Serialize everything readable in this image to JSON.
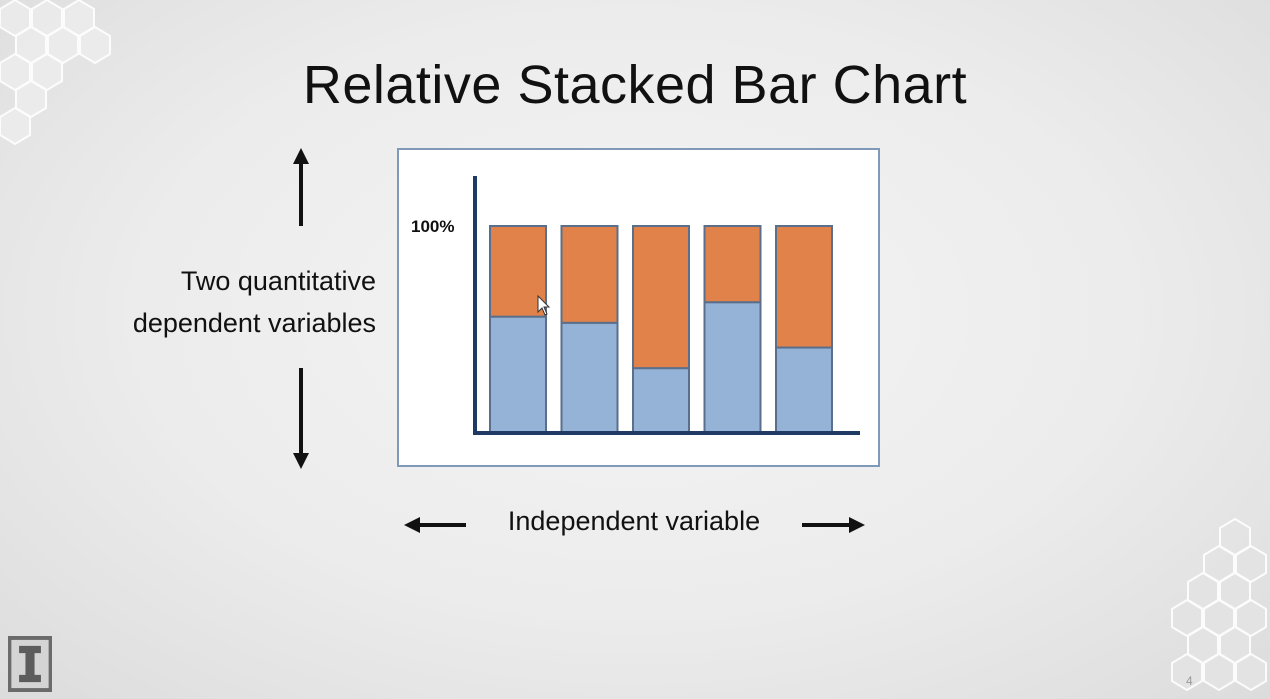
{
  "slide": {
    "title": "Relative Stacked Bar Chart",
    "y_axis_caption_lines": [
      "Two quantitative",
      "dependent variables"
    ],
    "x_axis_caption": "Independent variable",
    "page_number": "4"
  },
  "colors": {
    "bottom_segment": "#95b3d7",
    "top_segment": "#e0824a",
    "bar_stroke": "#5a6f8c",
    "axis": "#1f3b63",
    "frame_border": "#7f9ab8"
  },
  "chart_data": {
    "type": "bar",
    "stacked": true,
    "relative": true,
    "y_tick_labels": [
      "100%"
    ],
    "ylim": [
      0,
      100
    ],
    "series": [
      {
        "values": [
          56,
          53,
          31,
          63,
          41
        ]
      },
      {
        "values": [
          44,
          47,
          69,
          37,
          59
        ]
      }
    ],
    "grid": false,
    "legend": "none"
  }
}
